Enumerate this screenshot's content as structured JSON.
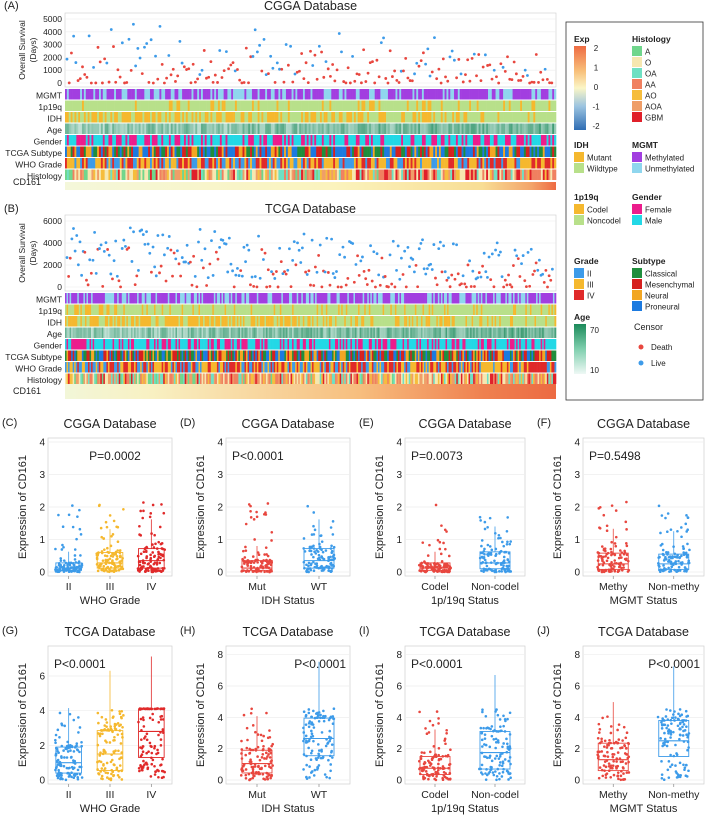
{
  "colors": {
    "death": "#e8473f",
    "live": "#3d9be9",
    "grade_II": "#3d9be9",
    "grade_III": "#f5b82e",
    "grade_IV": "#e02a2a",
    "mutant": "#f5b82e",
    "wildtype": "#b8e08a",
    "codel": "#f5b82e",
    "noncodel": "#b8e08a",
    "methylated": "#a23ee0",
    "unmethylated": "#8fd6ee",
    "female": "#ec1c8c",
    "male": "#22d8e6",
    "classical": "#1f8e3d",
    "mesenchymal": "#d6201f",
    "neural": "#f2a623",
    "proneural": "#1c7ae0",
    "hist_A": "#70d68c",
    "hist_O": "#f6e7b0",
    "hist_OA": "#6fe0c3",
    "hist_AA": "#f08060",
    "hist_AO": "#f6bd3c",
    "hist_AOA": "#ef9e68",
    "hist_GBM": "#e0202a"
  },
  "panel_A": {
    "letter": "(A)",
    "title": "CGGA Database",
    "ylabel": [
      "Overall Survival",
      "(Days)"
    ],
    "yticks": [
      "5000",
      "4000",
      "3000",
      "2000",
      "1000",
      "0"
    ],
    "tracks": [
      "MGMT",
      "1p19q",
      "IDH",
      "Age",
      "Gender",
      "TCGA Subtype",
      "WHO Grade",
      "Histology"
    ],
    "expr_label": "CD161"
  },
  "panel_B": {
    "letter": "(B)",
    "title": "TCGA Database",
    "ylabel": [
      "Overall Survival",
      "(Days)"
    ],
    "yticks": [
      "6000",
      "4000",
      "2000",
      "0"
    ],
    "tracks": [
      "MGMT",
      "1p19q",
      "IDH",
      "Age",
      "Gender",
      "TCGA Subtype",
      "WHO Grade",
      "Histology"
    ],
    "expr_label": "CD161"
  },
  "legend": {
    "exp_title": "Exp",
    "exp_ticks": [
      "2",
      "1",
      "0",
      "-1",
      "-2"
    ],
    "histology_title": "Histology",
    "histology_items": [
      "A",
      "O",
      "OA",
      "AA",
      "AO",
      "AOA",
      "GBM"
    ],
    "idh_title": "IDH",
    "idh_items": [
      "Mutant",
      "Wildtype"
    ],
    "mgmt_title": "MGMT",
    "mgmt_items": [
      "Methylated",
      "Unmethylated"
    ],
    "p1p19q_title": "1p19q",
    "p1p19q_items": [
      "Codel",
      "Noncodel"
    ],
    "gender_title": "Gender",
    "gender_items": [
      "Female",
      "Male"
    ],
    "grade_title": "Grade",
    "grade_items": [
      "II",
      "III",
      "IV"
    ],
    "subtype_title": "Subtype",
    "subtype_items": [
      "Classical",
      "Mesenchymal",
      "Neural",
      "Proneural"
    ],
    "age_title": "Age",
    "age_ticks": [
      "70",
      "10"
    ],
    "censor_title": "Censor",
    "censor_items": [
      "Death",
      "Live"
    ]
  },
  "chart_data": [
    {
      "id": "C",
      "letter": "(C)",
      "type": "box",
      "title": "CGGA Database",
      "ylabel": "Expression of CD161",
      "xlabel": "WHO Grade",
      "categories": [
        "II",
        "III",
        "IV"
      ],
      "ylim": [
        0,
        4
      ],
      "yticks": [
        "0",
        "1",
        "2",
        "3",
        "4"
      ],
      "pvalue": "P=0.0002",
      "boxes": [
        {
          "q1": 0.05,
          "median": 0.12,
          "q3": 0.28
        },
        {
          "q1": 0.12,
          "median": 0.28,
          "q3": 0.6
        },
        {
          "q1": 0.12,
          "median": 0.35,
          "q3": 0.72
        }
      ]
    },
    {
      "id": "D",
      "letter": "(D)",
      "type": "box",
      "title": "CGGA Database",
      "ylabel": "Expression of CD161",
      "xlabel": "IDH Status",
      "categories": [
        "Mut",
        "WT"
      ],
      "ylim": [
        0,
        4
      ],
      "yticks": [
        "0",
        "1",
        "2",
        "3",
        "4"
      ],
      "pvalue": "P<0.0001",
      "boxes": [
        {
          "q1": 0.05,
          "median": 0.12,
          "q3": 0.35
        },
        {
          "q1": 0.12,
          "median": 0.35,
          "q3": 0.72
        }
      ]
    },
    {
      "id": "E",
      "letter": "(E)",
      "type": "box",
      "title": "CGGA Database",
      "ylabel": "Expression of CD161",
      "xlabel": "1p/19q Status",
      "categories": [
        "Codel",
        "Non-codel"
      ],
      "ylim": [
        0,
        4
      ],
      "yticks": [
        "0",
        "1",
        "2",
        "3",
        "4"
      ],
      "pvalue": "P=0.0073",
      "boxes": [
        {
          "q1": 0.05,
          "median": 0.12,
          "q3": 0.28
        },
        {
          "q1": 0.1,
          "median": 0.28,
          "q3": 0.62
        }
      ]
    },
    {
      "id": "F",
      "letter": "(F)",
      "type": "box",
      "title": "CGGA Database",
      "ylabel": "Expression of CD161",
      "xlabel": "MGMT Status",
      "categories": [
        "Methy",
        "Non-methy"
      ],
      "ylim": [
        0,
        4
      ],
      "yticks": [
        "0",
        "1",
        "2",
        "3",
        "4"
      ],
      "pvalue": "P=0.5498",
      "boxes": [
        {
          "q1": 0.08,
          "median": 0.25,
          "q3": 0.58
        },
        {
          "q1": 0.08,
          "median": 0.25,
          "q3": 0.55
        }
      ]
    },
    {
      "id": "G",
      "letter": "(G)",
      "type": "box",
      "title": "TCGA Database",
      "ylabel": "Expression of CD161",
      "xlabel": "WHO Grade",
      "categories": [
        "II",
        "III",
        "IV"
      ],
      "ylim": [
        0,
        7.5
      ],
      "yticks": [
        "0",
        "2",
        "4",
        "6"
      ],
      "pvalue": "P<0.0001",
      "boxes": [
        {
          "q1": 0.4,
          "median": 1.0,
          "q3": 1.9
        },
        {
          "q1": 0.55,
          "median": 1.5,
          "q3": 2.85
        },
        {
          "q1": 1.3,
          "median": 2.8,
          "q3": 4.1
        }
      ]
    },
    {
      "id": "H",
      "letter": "(H)",
      "type": "box",
      "title": "TCGA Database",
      "ylabel": "Expression of CD161",
      "xlabel": "IDH Status",
      "categories": [
        "Mut",
        "WT"
      ],
      "ylim": [
        0,
        8.3
      ],
      "yticks": [
        "0",
        "2",
        "4",
        "6",
        "8"
      ],
      "pvalue": "P<0.0001",
      "boxes": [
        {
          "q1": 0.45,
          "median": 1.05,
          "q3": 1.9
        },
        {
          "q1": 1.55,
          "median": 2.65,
          "q3": 3.95
        }
      ]
    },
    {
      "id": "I",
      "letter": "(I)",
      "type": "box",
      "title": "TCGA Database",
      "ylabel": "Expression of CD161",
      "xlabel": "1p/19q Status",
      "categories": [
        "Codel",
        "Non-codel"
      ],
      "ylim": [
        0,
        8.3
      ],
      "yticks": [
        "0",
        "2",
        "4",
        "6",
        "8"
      ],
      "pvalue": "P<0.0001",
      "boxes": [
        {
          "q1": 0.35,
          "median": 0.75,
          "q3": 1.5
        },
        {
          "q1": 0.7,
          "median": 1.75,
          "q3": 3.1
        }
      ]
    },
    {
      "id": "J",
      "letter": "(J)",
      "type": "box",
      "title": "TCGA Database",
      "ylabel": "Expression of CD161",
      "xlabel": "MGMT Status",
      "categories": [
        "Methy",
        "Non-methy"
      ],
      "ylim": [
        0,
        8.3
      ],
      "yticks": [
        "0",
        "2",
        "4",
        "6",
        "8"
      ],
      "pvalue": "P<0.0001",
      "boxes": [
        {
          "q1": 0.6,
          "median": 1.3,
          "q3": 2.35
        },
        {
          "q1": 1.5,
          "median": 2.5,
          "q3": 3.8
        }
      ]
    }
  ]
}
